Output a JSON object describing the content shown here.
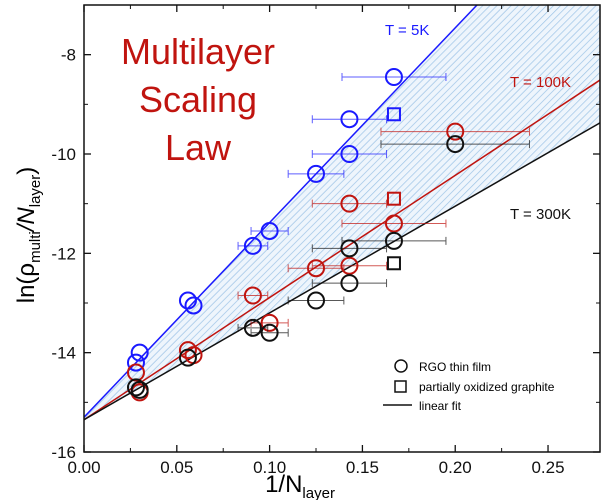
{
  "chart_data": {
    "type": "scatter",
    "title": "Multilayer Scaling Law",
    "title_lines": [
      "Multilayer",
      "Scaling",
      "Law"
    ],
    "xlabel": {
      "main": "1/N",
      "sub": "layer"
    },
    "ylabel": {
      "pre": "ln(ρ",
      "sub1": "multi",
      "mid": "/N",
      "sub2": "layer",
      "post": ")"
    },
    "xlim": [
      0,
      0.278
    ],
    "ylim": [
      -16,
      -7
    ],
    "xticks": [
      0,
      0.05,
      0.1,
      0.15,
      0.2,
      0.25
    ],
    "xtick_labels": [
      "0.00",
      "0.05",
      "0.10",
      "0.15",
      "0.20",
      "0.25"
    ],
    "yticks": [
      -16,
      -14,
      -12,
      -10,
      -8
    ],
    "ytick_labels": [
      "-16",
      "-14",
      "-12",
      "-10",
      "-8"
    ],
    "colors": {
      "5K": "#1a1aff",
      "100K": "#c0140f",
      "300K": "#111111",
      "band": "#9cc3e6",
      "title": "#c0140f"
    },
    "series": [
      {
        "name": "T = 5K",
        "color_key": "5K",
        "fit": {
          "intercept": -15.3,
          "slope": 39.2
        },
        "points": [
          [
            0.167,
            -8.45,
            0.028,
            "o"
          ],
          [
            0.143,
            -9.3,
            0.02,
            "o"
          ],
          [
            0.143,
            -10.0,
            0.02,
            "o"
          ],
          [
            0.125,
            -10.4,
            0.015,
            "o"
          ],
          [
            0.1,
            -11.55,
            0.01,
            "o"
          ],
          [
            0.091,
            -11.85,
            0.008,
            "o"
          ],
          [
            0.056,
            -12.95,
            0,
            "o"
          ],
          [
            0.059,
            -13.05,
            0,
            "o"
          ],
          [
            0.03,
            -14.0,
            0,
            "o"
          ],
          [
            0.028,
            -14.2,
            0,
            "o"
          ],
          [
            0.167,
            -9.2,
            0,
            "s"
          ]
        ]
      },
      {
        "name": "T = 100K",
        "color_key": "100K",
        "fit": {
          "intercept": -15.35,
          "slope": 24.6
        },
        "points": [
          [
            0.2,
            -9.55,
            0.04,
            "o"
          ],
          [
            0.143,
            -11.0,
            0.02,
            "o"
          ],
          [
            0.167,
            -11.4,
            0.028,
            "o"
          ],
          [
            0.125,
            -12.3,
            0.015,
            "o"
          ],
          [
            0.143,
            -12.25,
            0.02,
            "o"
          ],
          [
            0.091,
            -12.85,
            0.008,
            "o"
          ],
          [
            0.1,
            -13.4,
            0.01,
            "o"
          ],
          [
            0.056,
            -13.95,
            0,
            "o"
          ],
          [
            0.059,
            -14.05,
            0,
            "o"
          ],
          [
            0.028,
            -14.4,
            0,
            "o"
          ],
          [
            0.03,
            -14.8,
            0,
            "o"
          ],
          [
            0.167,
            -10.9,
            0,
            "s"
          ]
        ]
      },
      {
        "name": "T = 300K",
        "color_key": "300K",
        "fit": {
          "intercept": -15.35,
          "slope": 21.5
        },
        "points": [
          [
            0.2,
            -9.8,
            0.04,
            "o"
          ],
          [
            0.167,
            -11.75,
            0.028,
            "o"
          ],
          [
            0.143,
            -11.9,
            0.02,
            "o"
          ],
          [
            0.143,
            -12.6,
            0.02,
            "o"
          ],
          [
            0.125,
            -12.95,
            0.015,
            "o"
          ],
          [
            0.091,
            -13.5,
            0.008,
            "o"
          ],
          [
            0.1,
            -13.6,
            0.01,
            "o"
          ],
          [
            0.056,
            -14.1,
            0,
            "o"
          ],
          [
            0.028,
            -14.7,
            0,
            "o"
          ],
          [
            0.03,
            -14.75,
            0,
            "o"
          ],
          [
            0.167,
            -12.2,
            0,
            "s"
          ]
        ]
      }
    ],
    "legend": {
      "placement": "bottom-right",
      "items": [
        "RGO thin film",
        "partially oxidized graphite",
        "linear fit"
      ]
    }
  }
}
